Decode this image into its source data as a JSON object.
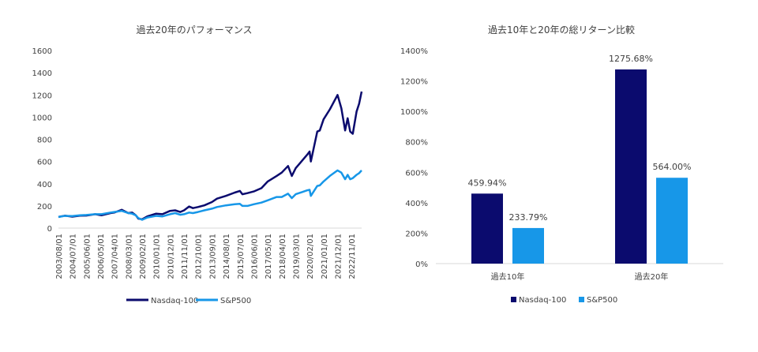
{
  "colors": {
    "nasdaq": "#0b0b6e",
    "sp500": "#1797e8",
    "axis": "#d9d9d9",
    "text": "#404040"
  },
  "chart_data": [
    {
      "type": "line",
      "title": "過去20年のパフォーマンス",
      "ylim": [
        0,
        1600
      ],
      "yticks": [
        "0",
        "200",
        "400",
        "600",
        "800",
        "1000",
        "1200",
        "1400",
        "1600"
      ],
      "x_tick_labels": [
        "2003/08/01",
        "2004/07/01",
        "2005/06/01",
        "2006/05/01",
        "2007/04/01",
        "2008/03/01",
        "2009/02/01",
        "2010/01/01",
        "2010/12/01",
        "2011/11/01",
        "2012/10/01",
        "2013/09/01",
        "2014/08/01",
        "2015/07/01",
        "2016/06/01",
        "2017/05/01",
        "2018/04/01",
        "2019/03/01",
        "2020/02/01",
        "2021/01/01",
        "2021/12/01",
        "2022/11/01"
      ],
      "x_range": [
        "2003/08/01",
        "2023/07/01"
      ],
      "grid": false,
      "legend_position": "bottom",
      "series": [
        {
          "name": "Nasdaq-100",
          "color": "#0b0b6e",
          "points": [
            [
              "2003/08/01",
              100
            ],
            [
              "2004/01/01",
              112
            ],
            [
              "2004/07/01",
              103
            ],
            [
              "2005/01/01",
              112
            ],
            [
              "2005/06/01",
              113
            ],
            [
              "2006/01/01",
              125
            ],
            [
              "2006/06/01",
              115
            ],
            [
              "2007/01/01",
              135
            ],
            [
              "2007/04/01",
              140
            ],
            [
              "2007/10/01",
              165
            ],
            [
              "2008/03/01",
              135
            ],
            [
              "2008/06/01",
              140
            ],
            [
              "2008/09/01",
              115
            ],
            [
              "2008/11/01",
              85
            ],
            [
              "2009/02/01",
              80
            ],
            [
              "2009/06/01",
              105
            ],
            [
              "2010/01/01",
              130
            ],
            [
              "2010/06/01",
              125
            ],
            [
              "2010/12/01",
              155
            ],
            [
              "2011/04/01",
              160
            ],
            [
              "2011/08/01",
              145
            ],
            [
              "2011/11/01",
              160
            ],
            [
              "2012/03/01",
              195
            ],
            [
              "2012/06/01",
              180
            ],
            [
              "2012/10/01",
              190
            ],
            [
              "2013/03/01",
              205
            ],
            [
              "2013/09/01",
              235
            ],
            [
              "2014/01/01",
              265
            ],
            [
              "2014/08/01",
              290
            ],
            [
              "2015/03/01",
              320
            ],
            [
              "2015/07/01",
              335
            ],
            [
              "2015/09/01",
              305
            ],
            [
              "2016/01/01",
              315
            ],
            [
              "2016/06/01",
              330
            ],
            [
              "2016/12/01",
              360
            ],
            [
              "2017/05/01",
              420
            ],
            [
              "2017/12/01",
              470
            ],
            [
              "2018/04/01",
              500
            ],
            [
              "2018/09/01",
              560
            ],
            [
              "2018/12/01",
              470
            ],
            [
              "2019/03/01",
              540
            ],
            [
              "2019/12/01",
              660
            ],
            [
              "2020/02/01",
              690
            ],
            [
              "2020/03/01",
              600
            ],
            [
              "2020/08/01",
              870
            ],
            [
              "2020/10/01",
              880
            ],
            [
              "2021/01/01",
              980
            ],
            [
              "2021/06/01",
              1070
            ],
            [
              "2021/12/01",
              1200
            ],
            [
              "2022/03/01",
              1080
            ],
            [
              "2022/06/01",
              880
            ],
            [
              "2022/08/01",
              990
            ],
            [
              "2022/10/01",
              870
            ],
            [
              "2022/12/01",
              850
            ],
            [
              "2023/03/01",
              1050
            ],
            [
              "2023/05/01",
              1120
            ],
            [
              "2023/07/01",
              1230
            ]
          ]
        },
        {
          "name": "S&P500",
          "color": "#1797e8",
          "points": [
            [
              "2003/08/01",
              100
            ],
            [
              "2004/01/01",
              110
            ],
            [
              "2004/07/01",
              108
            ],
            [
              "2005/01/01",
              115
            ],
            [
              "2005/06/01",
              118
            ],
            [
              "2006/01/01",
              125
            ],
            [
              "2006/06/01",
              125
            ],
            [
              "2007/01/01",
              140
            ],
            [
              "2007/04/01",
              145
            ],
            [
              "2007/10/01",
              155
            ],
            [
              "2008/03/01",
              135
            ],
            [
              "2008/06/01",
              130
            ],
            [
              "2008/09/01",
              115
            ],
            [
              "2008/11/01",
              90
            ],
            [
              "2009/02/01",
              75
            ],
            [
              "2009/06/01",
              95
            ],
            [
              "2010/01/01",
              110
            ],
            [
              "2010/06/01",
              105
            ],
            [
              "2010/12/01",
              125
            ],
            [
              "2011/04/01",
              135
            ],
            [
              "2011/08/01",
              120
            ],
            [
              "2011/11/01",
              125
            ],
            [
              "2012/03/01",
              140
            ],
            [
              "2012/06/01",
              135
            ],
            [
              "2012/10/01",
              145
            ],
            [
              "2013/03/01",
              160
            ],
            [
              "2013/09/01",
              175
            ],
            [
              "2014/01/01",
              190
            ],
            [
              "2014/08/01",
              205
            ],
            [
              "2015/03/01",
              215
            ],
            [
              "2015/07/01",
              218
            ],
            [
              "2015/09/01",
              200
            ],
            [
              "2016/01/01",
              200
            ],
            [
              "2016/06/01",
              215
            ],
            [
              "2016/12/01",
              230
            ],
            [
              "2017/05/01",
              250
            ],
            [
              "2017/12/01",
              280
            ],
            [
              "2018/04/01",
              280
            ],
            [
              "2018/09/01",
              310
            ],
            [
              "2018/12/01",
              270
            ],
            [
              "2019/03/01",
              305
            ],
            [
              "2019/12/01",
              340
            ],
            [
              "2020/02/01",
              345
            ],
            [
              "2020/03/01",
              290
            ],
            [
              "2020/08/01",
              380
            ],
            [
              "2020/10/01",
              385
            ],
            [
              "2021/01/01",
              420
            ],
            [
              "2021/06/01",
              470
            ],
            [
              "2021/12/01",
              520
            ],
            [
              "2022/03/01",
              500
            ],
            [
              "2022/06/01",
              440
            ],
            [
              "2022/08/01",
              480
            ],
            [
              "2022/10/01",
              440
            ],
            [
              "2022/12/01",
              450
            ],
            [
              "2023/03/01",
              480
            ],
            [
              "2023/05/01",
              495
            ],
            [
              "2023/07/01",
              520
            ]
          ]
        }
      ]
    },
    {
      "type": "bar",
      "title": "過去10年と20年の総リターン比較",
      "ylim": [
        0,
        1400
      ],
      "yticks": [
        "0%",
        "200%",
        "400%",
        "600%",
        "800%",
        "1000%",
        "1200%",
        "1400%"
      ],
      "categories": [
        "過去10年",
        "過去20年"
      ],
      "grid": false,
      "legend_position": "bottom",
      "series": [
        {
          "name": "Nasdaq-100",
          "color": "#0b0b6e",
          "values": [
            459.94,
            1275.68
          ],
          "labels": [
            "459.94%",
            "1275.68%"
          ]
        },
        {
          "name": "S&P500",
          "color": "#1797e8",
          "values": [
            233.79,
            564.0
          ],
          "labels": [
            "233.79%",
            "564.00%"
          ]
        }
      ]
    }
  ]
}
